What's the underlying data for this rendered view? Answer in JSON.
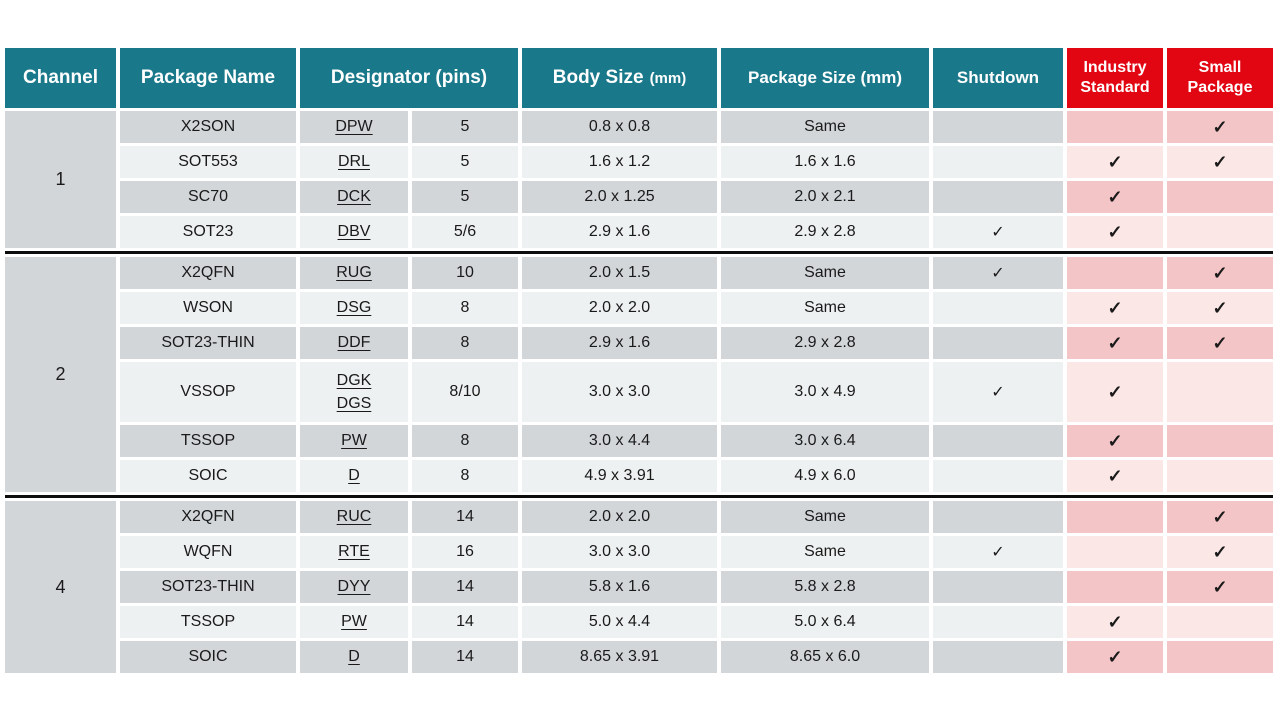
{
  "colors": {
    "teal": "#19788a",
    "red": "#e20613",
    "grayDark": "#d2d6d9",
    "grayLight": "#eef1f1",
    "pinkDark": "#f4c5c6",
    "pinkLight": "#fbe8e6"
  },
  "check_glyph": "✓",
  "header": {
    "channel": "Channel",
    "package_name": "Package Name",
    "designator_pins": "Designator (pins)",
    "body_size": "Body Size",
    "body_size_unit": "(mm)",
    "package_size": "Package Size (mm)",
    "shutdown": "Shutdown",
    "industry_standard_line1": "Industry",
    "industry_standard_line2": "Standard",
    "small_package_line1": "Small",
    "small_package_line2": "Package"
  },
  "table": {
    "groups": [
      {
        "channel": "1",
        "rows": [
          {
            "package_name": "X2SON",
            "designators": [
              "DPW"
            ],
            "pins": "5",
            "body_size": "0.8 x 0.8",
            "package_size": "Same",
            "shutdown": false,
            "industry_standard": false,
            "small_package": true
          },
          {
            "package_name": "SOT553",
            "designators": [
              "DRL"
            ],
            "pins": "5",
            "body_size": "1.6 x 1.2",
            "package_size": "1.6 x 1.6",
            "shutdown": false,
            "industry_standard": true,
            "small_package": true
          },
          {
            "package_name": "SC70",
            "designators": [
              "DCK"
            ],
            "pins": "5",
            "body_size": "2.0 x 1.25",
            "package_size": "2.0 x 2.1",
            "shutdown": false,
            "industry_standard": true,
            "small_package": false
          },
          {
            "package_name": "SOT23",
            "designators": [
              "DBV"
            ],
            "pins": "5/6",
            "body_size": "2.9 x 1.6",
            "package_size": "2.9 x 2.8",
            "shutdown": true,
            "industry_standard": true,
            "small_package": false
          }
        ]
      },
      {
        "channel": "2",
        "rows": [
          {
            "package_name": "X2QFN",
            "designators": [
              "RUG"
            ],
            "pins": "10",
            "body_size": "2.0 x 1.5",
            "package_size": "Same",
            "shutdown": true,
            "industry_standard": false,
            "small_package": true
          },
          {
            "package_name": "WSON",
            "designators": [
              "DSG"
            ],
            "pins": "8",
            "body_size": "2.0 x 2.0",
            "package_size": "Same",
            "shutdown": false,
            "industry_standard": true,
            "small_package": true
          },
          {
            "package_name": "SOT23-THIN",
            "designators": [
              "DDF"
            ],
            "pins": "8",
            "body_size": "2.9 x 1.6",
            "package_size": "2.9 x 2.8",
            "shutdown": false,
            "industry_standard": true,
            "small_package": true
          },
          {
            "package_name": "VSSOP",
            "designators": [
              "DGK",
              "DGS"
            ],
            "pins": "8/10",
            "body_size": "3.0 x 3.0",
            "package_size": "3.0 x 4.9",
            "shutdown": true,
            "industry_standard": true,
            "small_package": false
          },
          {
            "package_name": "TSSOP",
            "designators": [
              "PW"
            ],
            "pins": "8",
            "body_size": "3.0 x 4.4",
            "package_size": "3.0 x 6.4",
            "shutdown": false,
            "industry_standard": true,
            "small_package": false
          },
          {
            "package_name": "SOIC",
            "designators": [
              "D"
            ],
            "pins": "8",
            "body_size": "4.9 x 3.91",
            "package_size": "4.9 x 6.0",
            "shutdown": false,
            "industry_standard": true,
            "small_package": false
          }
        ]
      },
      {
        "channel": "4",
        "rows": [
          {
            "package_name": "X2QFN",
            "designators": [
              "RUC"
            ],
            "pins": "14",
            "body_size": "2.0 x 2.0",
            "package_size": "Same",
            "shutdown": false,
            "industry_standard": false,
            "small_package": true
          },
          {
            "package_name": "WQFN",
            "designators": [
              "RTE"
            ],
            "pins": "16",
            "body_size": "3.0 x 3.0",
            "package_size": "Same",
            "shutdown": true,
            "industry_standard": false,
            "small_package": true
          },
          {
            "package_name": "SOT23-THIN",
            "designators": [
              "DYY"
            ],
            "pins": "14",
            "body_size": "5.8 x 1.6",
            "package_size": "5.8 x 2.8",
            "shutdown": false,
            "industry_standard": false,
            "small_package": true
          },
          {
            "package_name": "TSSOP",
            "designators": [
              "PW"
            ],
            "pins": "14",
            "body_size": "5.0 x 4.4",
            "package_size": "5.0 x 6.4",
            "shutdown": false,
            "industry_standard": true,
            "small_package": false
          },
          {
            "package_name": "SOIC",
            "designators": [
              "D"
            ],
            "pins": "14",
            "body_size": "8.65 x 3.91",
            "package_size": "8.65 x 6.0",
            "shutdown": false,
            "industry_standard": true,
            "small_package": false
          }
        ]
      }
    ]
  }
}
